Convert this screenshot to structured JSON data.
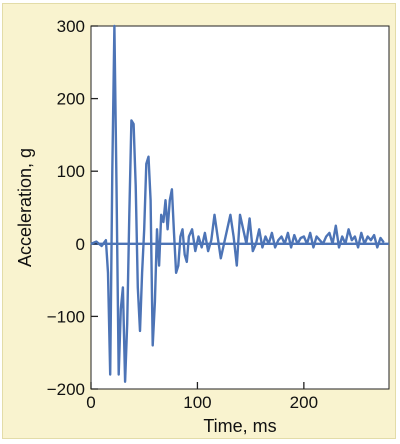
{
  "chart_data": {
    "type": "line",
    "title": "",
    "xlabel": "Time, ms",
    "ylabel": "Acceleration, g",
    "xlim": [
      0,
      280
    ],
    "ylim": [
      -200,
      300
    ],
    "xticks": [
      0,
      100,
      200
    ],
    "yticks": [
      -200,
      -100,
      0,
      100,
      200,
      300
    ],
    "xtick_labels": [
      "0",
      "100",
      "200"
    ],
    "ytick_labels": [
      "−200",
      "−100",
      "0",
      "100",
      "200",
      "300"
    ],
    "grid": false,
    "zero_line": true,
    "series": [
      {
        "color": "#4d74b6",
        "x": [
          0,
          5,
          10,
          14,
          16,
          18,
          20,
          22,
          24,
          26,
          28,
          30,
          32,
          34,
          36,
          38,
          40,
          42,
          44,
          46,
          48,
          50,
          52,
          54,
          56,
          58,
          60,
          62,
          64,
          66,
          68,
          70,
          72,
          74,
          76,
          78,
          80,
          82,
          84,
          86,
          88,
          90,
          92,
          95,
          98,
          101,
          104,
          107,
          110,
          113,
          116,
          119,
          122,
          125,
          128,
          131,
          134,
          137,
          140,
          143,
          146,
          149,
          152,
          155,
          158,
          161,
          164,
          167,
          170,
          173,
          176,
          179,
          182,
          185,
          188,
          191,
          194,
          197,
          200,
          203,
          206,
          209,
          212,
          215,
          218,
          221,
          224,
          227,
          230,
          233,
          236,
          239,
          242,
          245,
          248,
          251,
          254,
          257,
          260,
          263,
          266,
          269,
          272,
          275
        ],
        "y": [
          0,
          3,
          -3,
          5,
          -40,
          -180,
          100,
          300,
          80,
          -180,
          -90,
          -60,
          -190,
          -110,
          40,
          170,
          165,
          80,
          -60,
          -120,
          -40,
          20,
          110,
          120,
          60,
          -140,
          -80,
          20,
          -30,
          40,
          30,
          60,
          20,
          60,
          75,
          15,
          -40,
          -30,
          10,
          20,
          -15,
          -25,
          10,
          20,
          -10,
          10,
          -5,
          15,
          -10,
          5,
          40,
          10,
          -20,
          0,
          20,
          40,
          10,
          -30,
          40,
          20,
          0,
          35,
          -10,
          0,
          20,
          -5,
          10,
          0,
          15,
          -5,
          5,
          10,
          0,
          15,
          -5,
          12,
          0,
          8,
          10,
          0,
          15,
          -5,
          10,
          5,
          0,
          10,
          15,
          0,
          25,
          -5,
          10,
          0,
          20,
          5,
          10,
          -5,
          15,
          0,
          10,
          5,
          12,
          -5,
          8,
          2
        ]
      }
    ]
  }
}
